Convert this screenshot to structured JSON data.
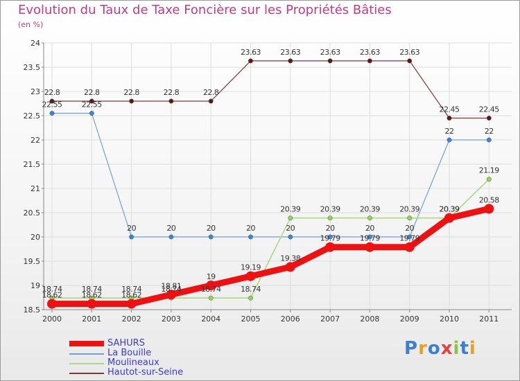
{
  "title": "Evolution du Taux de Taxe Foncière sur les Propriétés Bâties",
  "unit": "(en %)",
  "logo": "Proxiti",
  "chart_data": {
    "type": "line",
    "title": "Evolution du Taux de Taxe Foncière sur les Propriétés Bâties",
    "ylabel": "(en %)",
    "x": [
      "2000",
      "2001",
      "2002",
      "2003",
      "2004",
      "2005",
      "2006",
      "2007",
      "2008",
      "2009",
      "2010",
      "2011"
    ],
    "ylim": [
      18.5,
      24
    ],
    "yticks": [
      "18.5",
      "19",
      "19.5",
      "20",
      "20.5",
      "21",
      "21.5",
      "22",
      "22.5",
      "23",
      "23.5",
      "24"
    ],
    "series": [
      {
        "name": "SAHURS",
        "color": "#ee1111",
        "values": [
          18.62,
          18.62,
          18.62,
          18.81,
          19,
          19.19,
          19.38,
          19.79,
          19.79,
          19.79,
          20.39,
          20.58
        ],
        "labels": [
          "18.62",
          "18.62",
          "18.62",
          "18.81",
          "19",
          "19.19",
          "19.38",
          "19.79",
          "19.79",
          "19.79",
          "20.39",
          "20.58"
        ]
      },
      {
        "name": "La Bouille",
        "color": "#6f9fd0",
        "values": [
          22.55,
          22.55,
          20,
          20,
          20,
          20,
          20,
          20,
          20,
          20,
          22,
          22
        ],
        "labels": [
          "22.55",
          "22.55",
          "20",
          "20",
          "20",
          "20",
          "20",
          "20",
          "20",
          "20",
          "22",
          "22"
        ]
      },
      {
        "name": "Moulineaux",
        "color": "#a5dc82",
        "values": [
          18.74,
          18.74,
          18.74,
          18.74,
          18.74,
          18.74,
          20.39,
          20.39,
          20.39,
          20.39,
          20.39,
          21.19
        ],
        "labels": [
          "18.74",
          "18.74",
          "18.74",
          "18.74",
          "18.74",
          "18.74",
          "20.39",
          "20.39",
          "20.39",
          "20.39",
          "20.39",
          "21.19"
        ]
      },
      {
        "name": "Hautot-sur-Seine",
        "color": "#7a3a3a",
        "values": [
          22.8,
          22.8,
          22.8,
          22.8,
          22.8,
          23.63,
          23.63,
          23.63,
          23.63,
          23.63,
          22.45,
          22.45
        ],
        "labels": [
          "22.8",
          "22.8",
          "22.8",
          "22.8",
          "22.8",
          "23.63",
          "23.63",
          "23.63",
          "23.63",
          "23.63",
          "22.45",
          "22.45"
        ]
      }
    ]
  }
}
